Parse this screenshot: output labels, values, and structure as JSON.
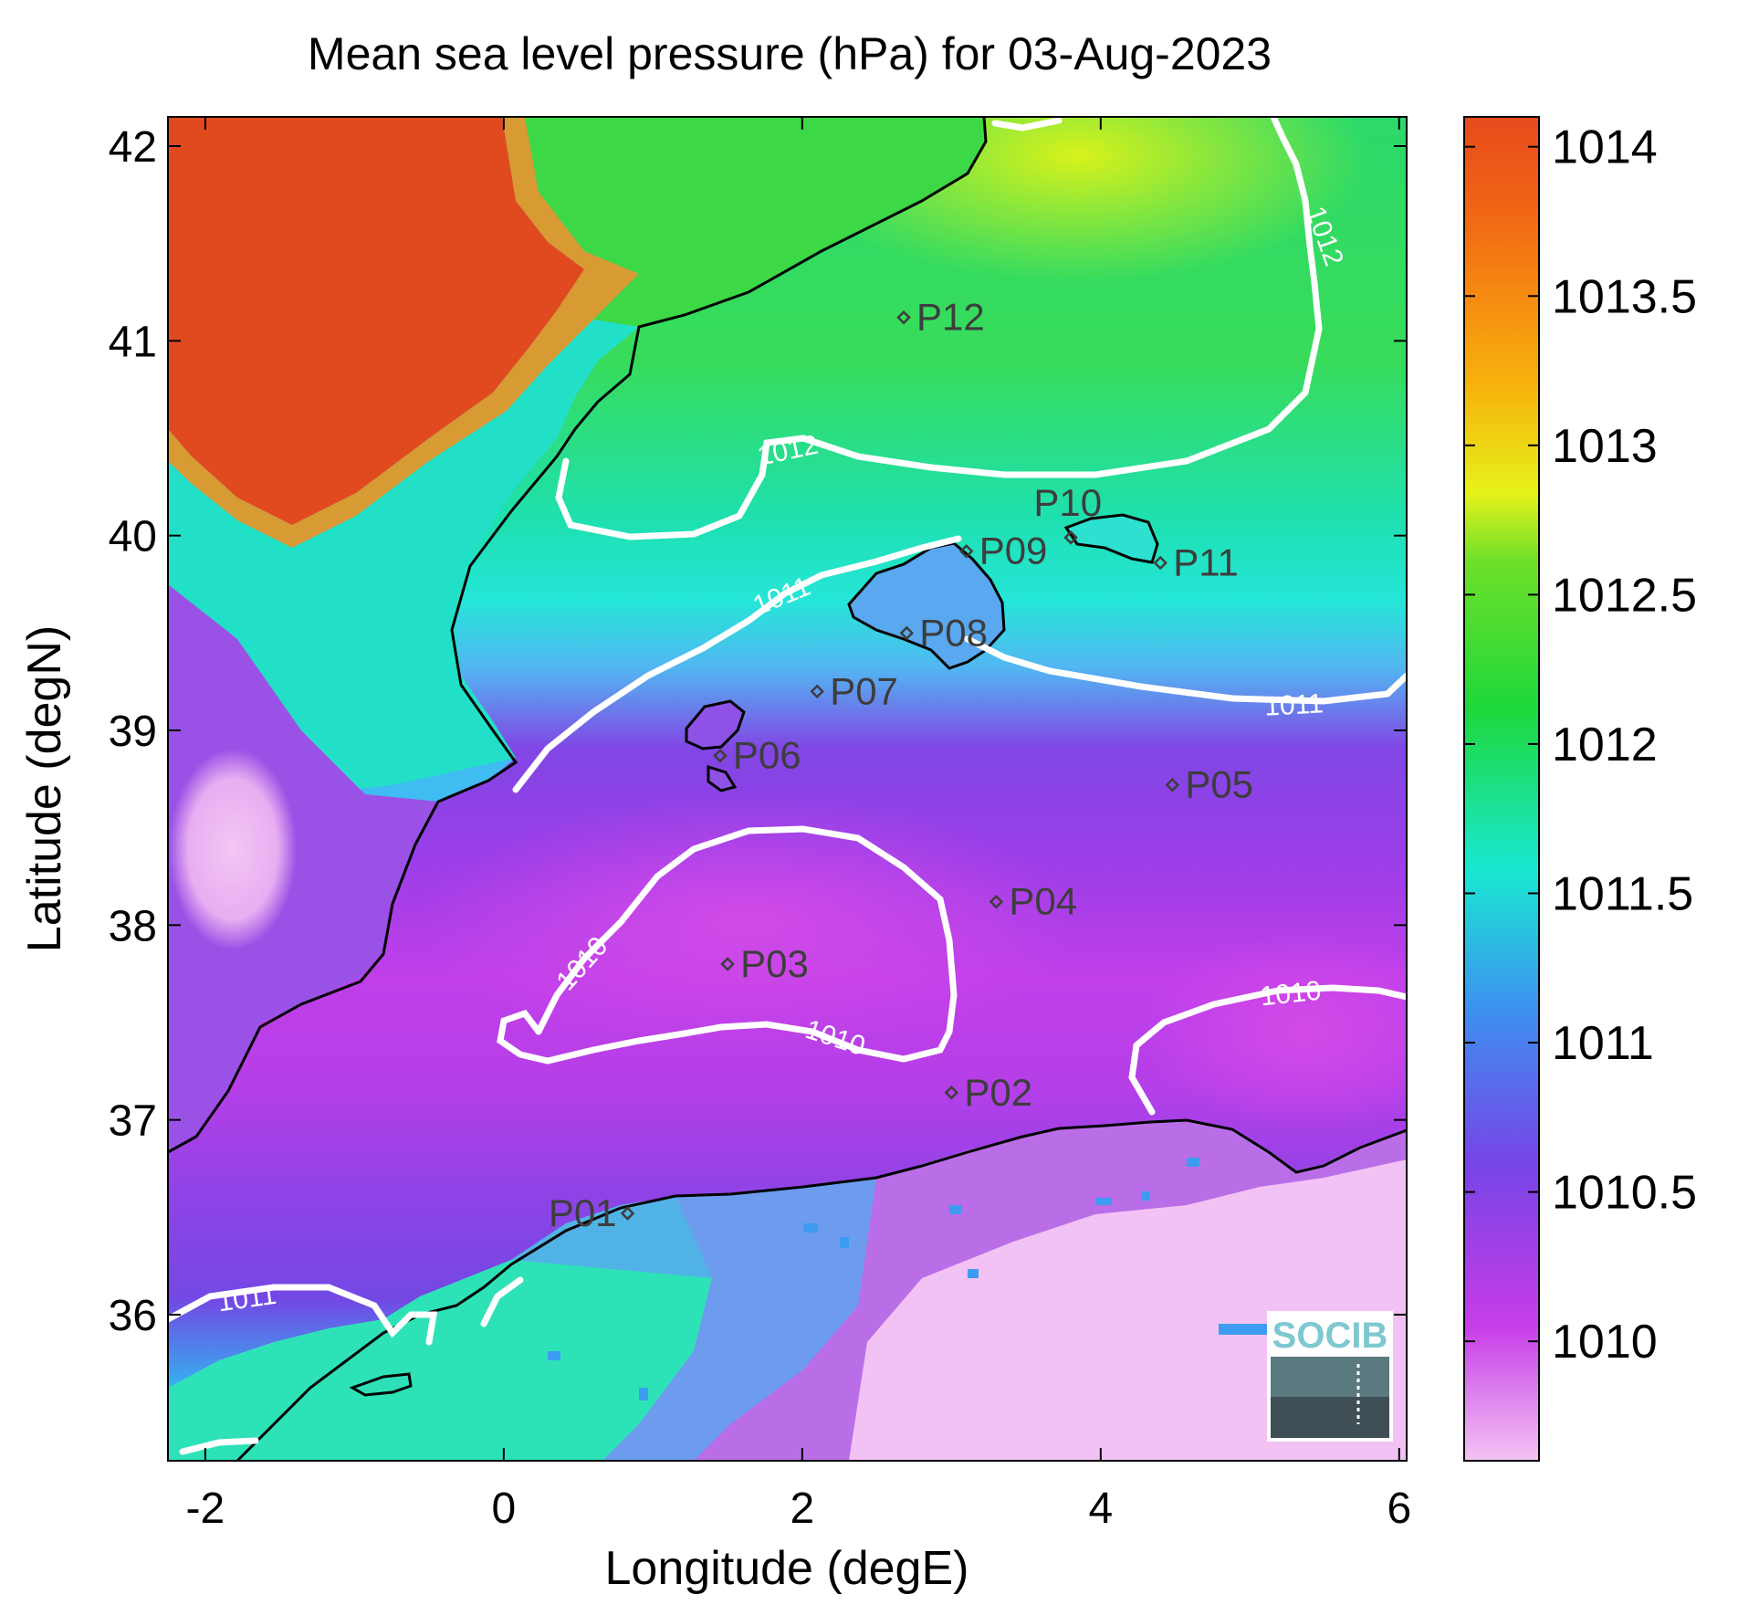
{
  "title": "Mean sea level pressure (hPa) for 03-Aug-2023",
  "axes": {
    "xlabel": "Longitude (degE)",
    "ylabel": "Latitude (degN)",
    "xlim": [
      -2.25,
      6.05
    ],
    "ylim": [
      35.25,
      42.15
    ],
    "xticks": [
      "-2",
      "0",
      "2",
      "4",
      "6"
    ],
    "yticks": [
      "36",
      "37",
      "38",
      "39",
      "40",
      "41",
      "42"
    ]
  },
  "colorbar": {
    "range": [
      1009.6,
      1014.1
    ],
    "ticks": [
      "1010",
      "1010.5",
      "1011",
      "1011.5",
      "1012",
      "1012.5",
      "1013",
      "1013.5",
      "1014"
    ],
    "colors": [
      "#f3c4f3",
      "#c73de8",
      "#7844e6",
      "#3f8cf0",
      "#19e8d2",
      "#1ed83a",
      "#e6f21a",
      "#f7b20c",
      "#e64a1c"
    ]
  },
  "contours": {
    "levels": [
      "1010",
      "1011",
      "1012"
    ],
    "labels": [
      "1012",
      "1012",
      "1011",
      "1011",
      "1011",
      "1010",
      "1010",
      "1010"
    ]
  },
  "stations": [
    {
      "name": "P01",
      "lon": 0.83,
      "lat": 36.52
    },
    {
      "name": "P02",
      "lon": 3.0,
      "lat": 37.14
    },
    {
      "name": "P03",
      "lon": 1.5,
      "lat": 37.8
    },
    {
      "name": "P04",
      "lon": 3.3,
      "lat": 38.12
    },
    {
      "name": "P05",
      "lon": 4.48,
      "lat": 38.72
    },
    {
      "name": "P06",
      "lon": 1.45,
      "lat": 38.87
    },
    {
      "name": "P07",
      "lon": 2.1,
      "lat": 39.2
    },
    {
      "name": "P08",
      "lon": 2.7,
      "lat": 39.5
    },
    {
      "name": "P09",
      "lon": 3.1,
      "lat": 39.92
    },
    {
      "name": "P10",
      "lon": 3.8,
      "lat": 39.99
    },
    {
      "name": "P11",
      "lon": 4.4,
      "lat": 39.86
    },
    {
      "name": "P12",
      "lon": 2.68,
      "lat": 41.12
    }
  ],
  "logo": {
    "text": "SOCIB"
  }
}
